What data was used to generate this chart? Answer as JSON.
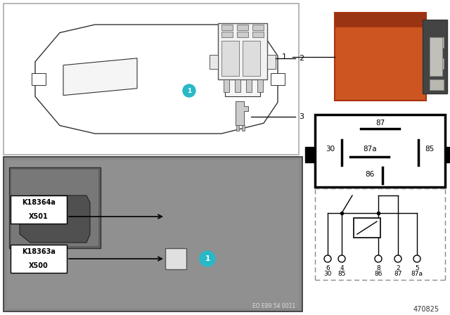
{
  "bg_color": "#ffffff",
  "figure_number": "470825",
  "eo_number": "EO E89 54 0011",
  "teal_color": "#29b8c8",
  "orange_relay_color": "#cc5522",
  "pin_top_labels": [
    "6",
    "4",
    "8",
    "2",
    "5"
  ],
  "pin_bot_labels": [
    "30",
    "85",
    "86",
    "87",
    "87a"
  ]
}
